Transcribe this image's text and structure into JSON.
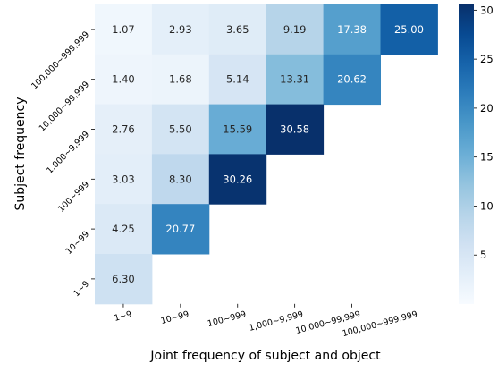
{
  "chart_data": {
    "type": "heatmap",
    "xlabel": "Joint frequency of subject and object",
    "ylabel": "Subject frequency",
    "x_categories": [
      "1~9",
      "10~99",
      "100~999",
      "1,000~9,999",
      "10,000~99,999",
      "100,000~999,999"
    ],
    "y_categories": [
      "100,000~999,999",
      "10,000~99,999",
      "1,000~9,999",
      "100~999",
      "10~99",
      "1~9"
    ],
    "values": [
      [
        1.07,
        2.93,
        3.65,
        9.19,
        17.38,
        25.0
      ],
      [
        1.4,
        1.68,
        5.14,
        13.31,
        20.62,
        null
      ],
      [
        2.76,
        5.5,
        15.59,
        30.58,
        null,
        null
      ],
      [
        3.03,
        8.3,
        30.26,
        null,
        null,
        null
      ],
      [
        4.25,
        20.77,
        null,
        null,
        null,
        null
      ],
      [
        6.3,
        null,
        null,
        null,
        null,
        null
      ]
    ],
    "value_labels": [
      [
        "1.07",
        "2.93",
        "3.65",
        "9.19",
        "17.38",
        "25.00"
      ],
      [
        "1.40",
        "1.68",
        "5.14",
        "13.31",
        "20.62",
        ""
      ],
      [
        "2.76",
        "5.50",
        "15.59",
        "30.58",
        "",
        ""
      ],
      [
        "3.03",
        "8.30",
        "30.26",
        "",
        "",
        ""
      ],
      [
        "4.25",
        "20.77",
        "",
        "",
        "",
        ""
      ],
      [
        "6.30",
        "",
        "",
        "",
        "",
        ""
      ]
    ],
    "colorbar": {
      "min": 0,
      "max": 30.58,
      "ticks": [
        "5",
        "10",
        "15",
        "20",
        "25",
        "30"
      ],
      "tick_values": [
        5,
        10,
        15,
        20,
        25,
        30
      ],
      "colormap": "Blues"
    }
  }
}
